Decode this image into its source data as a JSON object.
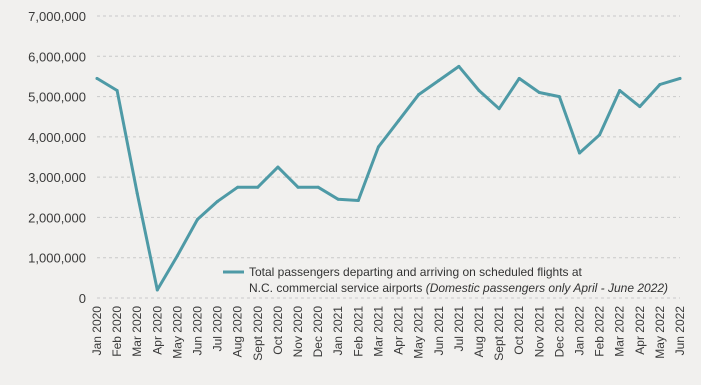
{
  "chart_data": {
    "type": "line",
    "categories": [
      "Jan 2020",
      "Feb 2020",
      "Mar 2020",
      "Apr 2020",
      "May 2020",
      "Jun 2020",
      "Jul 2020",
      "Aug 2020",
      "Sept 2020",
      "Oct 2020",
      "Nov 2020",
      "Dec 2020",
      "Jan 2021",
      "Feb 2021",
      "Mar 2021",
      "Apr 2021",
      "May 2021",
      "Jun 2021",
      "Jul 2021",
      "Aug 2021",
      "Sept 2021",
      "Oct 2021",
      "Nov 2021",
      "Dec 2021",
      "Jan 2022",
      "Feb 2022",
      "Mar 2022",
      "Apr 2022",
      "May 2022",
      "Jun 2022"
    ],
    "series": [
      {
        "values": [
          5450000,
          5150000,
          2600000,
          200000,
          1050000,
          1950000,
          2400000,
          2750000,
          2750000,
          3250000,
          2750000,
          2750000,
          2450000,
          2420000,
          3750000,
          4400000,
          5050000,
          5400000,
          5750000,
          5150000,
          4700000,
          5450000,
          5100000,
          5000000,
          3600000,
          4050000,
          5150000,
          4750000,
          5300000,
          5450000
        ]
      }
    ],
    "yticks": [
      0,
      1000000,
      2000000,
      3000000,
      4000000,
      5000000,
      6000000,
      7000000
    ],
    "ytick_labels": [
      "0",
      "1,000,000",
      "2,000,000",
      "3,000,000",
      "4,000,000",
      "5,000,000",
      "6,000,000",
      "7,000,000"
    ],
    "ylim": [
      0,
      7000000
    ],
    "grid": true,
    "line_color": "#4e9aa6",
    "legend": {
      "line1": "Total passengers departing and arriving on scheduled flights at",
      "line2_plain": "N.C. commercial service airports ",
      "line2_italic": "(Domestic passengers only April - June 2022)",
      "placement": "bottom-right"
    }
  }
}
